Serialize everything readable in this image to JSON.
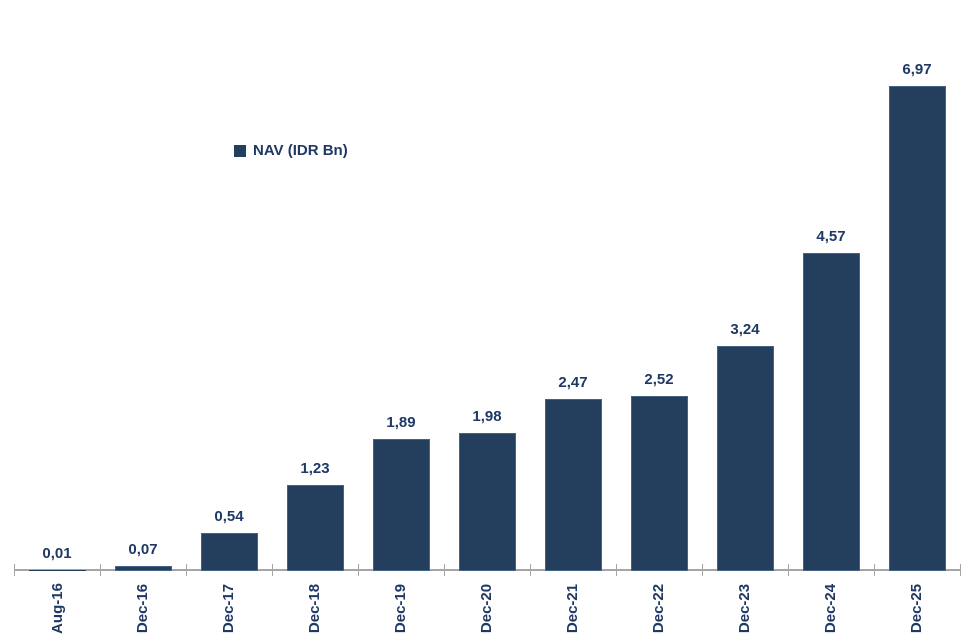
{
  "chart_data": {
    "type": "bar",
    "title": "",
    "xlabel": "",
    "ylabel": "",
    "legend": "NAV (IDR Bn)",
    "legend_position": "inside-upper-left",
    "grid": false,
    "y_axis_visible": false,
    "decimal_separator": "comma",
    "categories": [
      "Aug-16",
      "Dec-16",
      "Dec-17",
      "Dec-18",
      "Dec-19",
      "Dec-20",
      "Dec-21",
      "Dec-22",
      "Dec-23",
      "Dec-24",
      "Dec-25"
    ],
    "series": [
      {
        "name": "NAV (IDR Bn)",
        "values": [
          0.01,
          0.07,
          0.54,
          1.23,
          1.89,
          1.98,
          2.47,
          2.52,
          3.24,
          4.57,
          6.97
        ]
      }
    ],
    "value_labels": [
      "0,01",
      "0,07",
      "0,54",
      "1,23",
      "1,89",
      "1,98",
      "2,47",
      "2,52",
      "3,24",
      "4,57",
      "6,97"
    ],
    "ylim": [
      0,
      7.0
    ],
    "colors": {
      "bar_fill": "#243F5E",
      "bar_border": "#456384",
      "text": "#1F3864",
      "axis": "#A6A6A6"
    }
  }
}
